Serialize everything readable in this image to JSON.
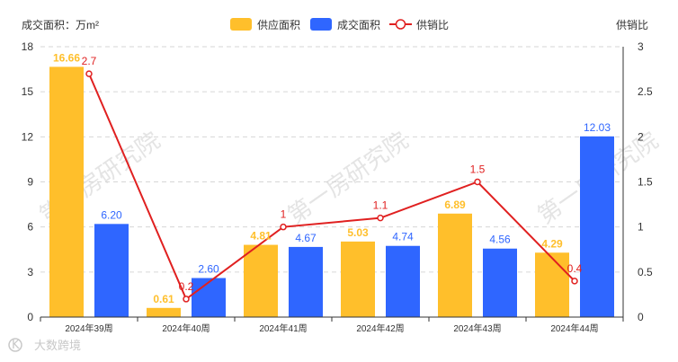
{
  "chart_data": {
    "type": "bar",
    "categories": [
      "2024年39周",
      "2024年40周",
      "2024年41周",
      "2024年42周",
      "2024年43周",
      "2024年44周"
    ],
    "series": [
      {
        "name": "供应面积",
        "type": "bar",
        "axis": "left",
        "color": "#FFBF2B",
        "values": [
          16.66,
          0.61,
          4.81,
          5.03,
          6.89,
          4.29
        ],
        "labels": [
          "16.66",
          "0.61",
          "4.81",
          "5.03",
          "6.89",
          "4.29"
        ]
      },
      {
        "name": "成交面积",
        "type": "bar",
        "axis": "left",
        "color": "#2F66FF",
        "values": [
          6.2,
          2.6,
          4.67,
          4.74,
          4.56,
          12.03
        ],
        "labels": [
          "6.20",
          "2.60",
          "4.67",
          "4.74",
          "4.56",
          "12.03"
        ]
      },
      {
        "name": "供销比",
        "type": "line",
        "axis": "right",
        "color": "#E02020",
        "values": [
          2.7,
          0.2,
          1,
          1.1,
          1.5,
          0.4
        ],
        "labels": [
          "2.7",
          "0.2",
          "1",
          "1.1",
          "1.5",
          "0.4"
        ]
      }
    ],
    "ylabel_left": "成交面积：万m²",
    "ylabel_right": "供销比",
    "ylim_left": [
      0,
      18
    ],
    "yticks_left": [
      "0",
      "3",
      "6",
      "9",
      "12",
      "15",
      "18"
    ],
    "ylim_right": [
      0,
      3
    ],
    "yticks_right": [
      "0",
      "0.5",
      "1",
      "1.5",
      "2",
      "2.5",
      "3"
    ],
    "grid": true,
    "legend_position": "top-center"
  },
  "watermark": "第一房研究院",
  "logo": {
    "text": "大数跨境",
    "icon": "k-logo-icon"
  }
}
